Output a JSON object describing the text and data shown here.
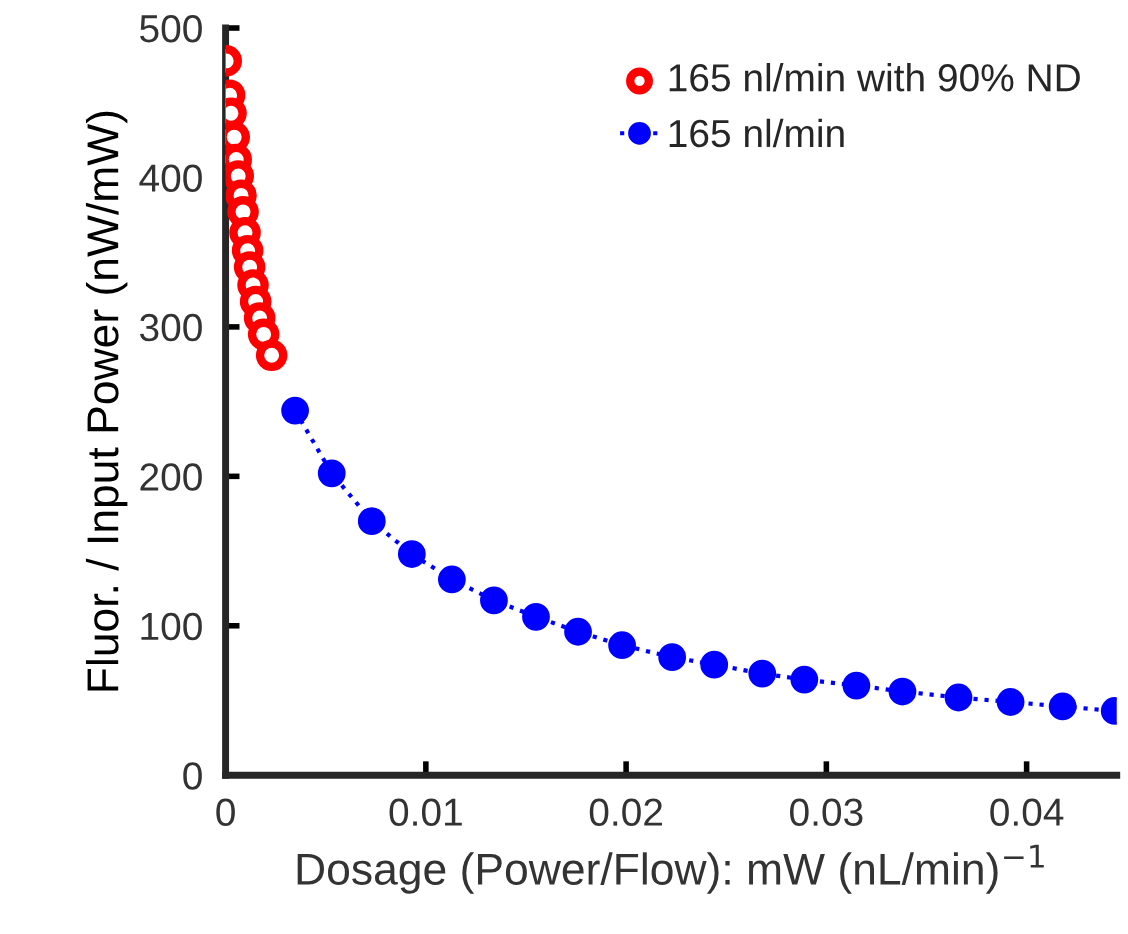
{
  "chart_data": {
    "type": "line",
    "xlabel": "Dosage (Power/Flow): mW (nL/min)$^{−1}$",
    "ylabel": "Fluor. / Input Power (nW/mW)",
    "xlim": [
      0,
      0.0445
    ],
    "xticks": [
      0,
      0.01,
      0.02,
      0.03,
      0.04
    ],
    "ylim": [
      0,
      500
    ],
    "yticks": [
      0,
      100,
      200,
      300,
      400,
      500
    ],
    "grid": false,
    "legend": "top right",
    "series": [
      {
        "name": "165 nl/min with 90% ND",
        "type": "scatter",
        "marker": "circle",
        "color": "#ff0000",
        "x": [
          3e-05,
          0.0002,
          0.00027,
          0.00043,
          0.00053,
          0.00063,
          0.00077,
          0.00087,
          0.00097,
          0.0011,
          0.0012,
          0.00137,
          0.0015,
          0.0017,
          0.0019,
          0.0023
        ],
        "values": [
          478,
          455,
          443,
          427,
          412,
          401,
          388,
          377,
          363,
          351,
          340,
          328,
          317,
          306,
          295,
          281
        ]
      },
      {
        "name": "165 nl/min",
        "marker": "circle",
        "line_style": "dotted",
        "color": "#0000ff",
        "x": [
          0.00347,
          0.0053,
          0.0073,
          0.0093,
          0.0113,
          0.0134,
          0.0155,
          0.0176,
          0.0198,
          0.0223,
          0.0244,
          0.0268,
          0.0289,
          0.0315,
          0.0338,
          0.0366,
          0.0392,
          0.0418,
          0.0444
        ],
        "values": [
          244,
          202,
          170,
          148,
          131,
          117,
          106,
          96,
          87,
          79,
          74,
          68,
          64,
          60,
          56,
          52,
          49,
          46,
          43
        ]
      }
    ]
  }
}
